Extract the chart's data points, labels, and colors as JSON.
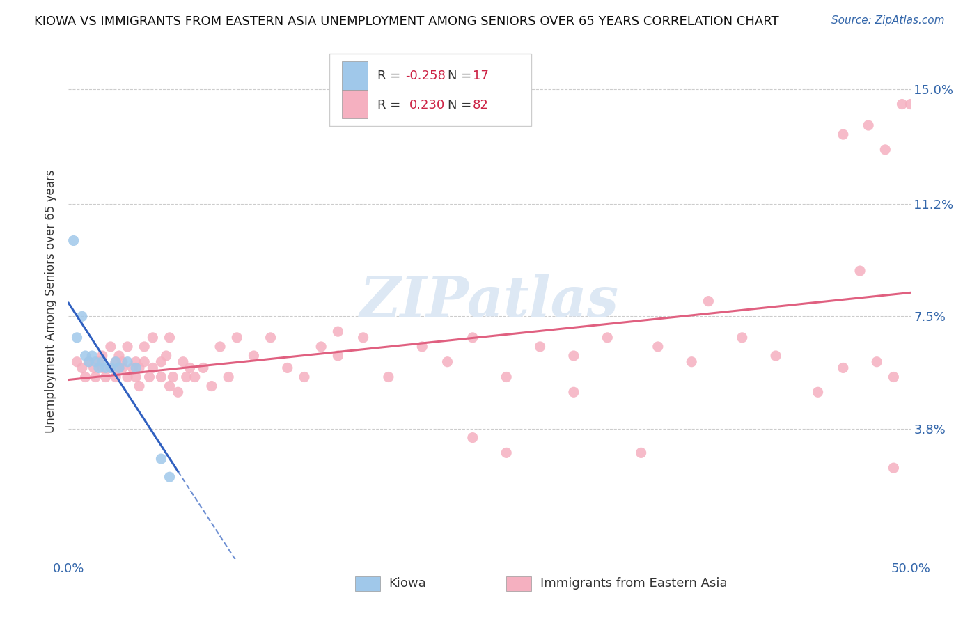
{
  "title": "KIOWA VS IMMIGRANTS FROM EASTERN ASIA UNEMPLOYMENT AMONG SENIORS OVER 65 YEARS CORRELATION CHART",
  "source": "Source: ZipAtlas.com",
  "ylabel": "Unemployment Among Seniors over 65 years",
  "xlim": [
    0.0,
    0.5
  ],
  "ylim": [
    -0.005,
    0.165
  ],
  "ytick_vals": [
    0.038,
    0.075,
    0.112,
    0.15
  ],
  "ytick_labels": [
    "3.8%",
    "7.5%",
    "11.2%",
    "15.0%"
  ],
  "kiowa_color": "#a0c8ea",
  "eastern_asia_color": "#f5b0c0",
  "kiowa_line_color": "#3060c0",
  "eastern_asia_line_color": "#e06080",
  "kiowa_R": -0.258,
  "kiowa_N": 17,
  "eastern_asia_R": 0.23,
  "eastern_asia_N": 82,
  "kiowa_x": [
    0.003,
    0.005,
    0.008,
    0.01,
    0.012,
    0.014,
    0.016,
    0.018,
    0.02,
    0.022,
    0.025,
    0.028,
    0.03,
    0.035,
    0.04,
    0.055,
    0.06
  ],
  "kiowa_y": [
    0.1,
    0.068,
    0.075,
    0.062,
    0.06,
    0.062,
    0.06,
    0.058,
    0.06,
    0.058,
    0.058,
    0.06,
    0.058,
    0.06,
    0.058,
    0.028,
    0.022
  ],
  "eastern_asia_x": [
    0.005,
    0.008,
    0.01,
    0.012,
    0.015,
    0.016,
    0.018,
    0.02,
    0.02,
    0.022,
    0.025,
    0.025,
    0.028,
    0.028,
    0.03,
    0.03,
    0.032,
    0.032,
    0.035,
    0.035,
    0.038,
    0.04,
    0.04,
    0.042,
    0.042,
    0.045,
    0.045,
    0.048,
    0.05,
    0.05,
    0.055,
    0.055,
    0.058,
    0.06,
    0.06,
    0.062,
    0.065,
    0.068,
    0.07,
    0.072,
    0.075,
    0.08,
    0.085,
    0.09,
    0.095,
    0.1,
    0.11,
    0.12,
    0.13,
    0.14,
    0.15,
    0.16,
    0.175,
    0.19,
    0.21,
    0.225,
    0.24,
    0.26,
    0.28,
    0.3,
    0.32,
    0.35,
    0.37,
    0.4,
    0.42,
    0.445,
    0.46,
    0.47,
    0.48,
    0.49,
    0.46,
    0.475,
    0.485,
    0.49,
    0.495,
    0.5,
    0.38,
    0.26,
    0.16,
    0.24,
    0.3,
    0.34
  ],
  "eastern_asia_y": [
    0.06,
    0.058,
    0.055,
    0.06,
    0.058,
    0.055,
    0.06,
    0.058,
    0.062,
    0.055,
    0.058,
    0.065,
    0.055,
    0.06,
    0.058,
    0.062,
    0.058,
    0.06,
    0.055,
    0.065,
    0.058,
    0.055,
    0.06,
    0.058,
    0.052,
    0.06,
    0.065,
    0.055,
    0.058,
    0.068,
    0.055,
    0.06,
    0.062,
    0.052,
    0.068,
    0.055,
    0.05,
    0.06,
    0.055,
    0.058,
    0.055,
    0.058,
    0.052,
    0.065,
    0.055,
    0.068,
    0.062,
    0.068,
    0.058,
    0.055,
    0.065,
    0.062,
    0.068,
    0.055,
    0.065,
    0.06,
    0.068,
    0.055,
    0.065,
    0.062,
    0.068,
    0.065,
    0.06,
    0.068,
    0.062,
    0.05,
    0.058,
    0.09,
    0.06,
    0.055,
    0.135,
    0.138,
    0.13,
    0.025,
    0.145,
    0.145,
    0.08,
    0.03,
    0.07,
    0.035,
    0.05,
    0.03
  ],
  "background_color": "#ffffff",
  "grid_color": "#cccccc",
  "watermark_color": "#dde8f4"
}
